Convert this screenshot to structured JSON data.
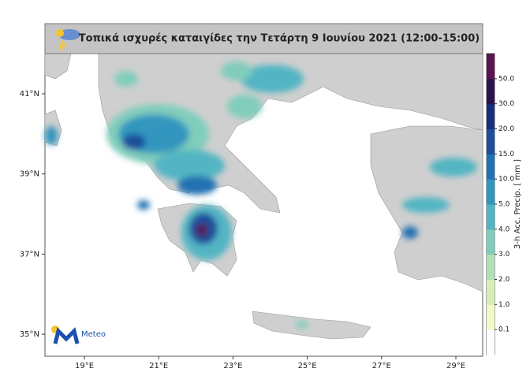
{
  "header": {
    "title": "Τοπικά ισχυρές καταιγίδες την Τετάρτη 9 Ιουνίου 2021 (12:00-15:00)"
  },
  "map": {
    "lat_labels": [
      "41°N",
      "39°N",
      "37°N",
      "35°N"
    ],
    "lon_labels": [
      "19°E",
      "21°E",
      "23°E",
      "25°E",
      "27°E",
      "29°E"
    ]
  },
  "colorbar": {
    "label": "3-h Acc. Precip. [ mm ]",
    "ticks": [
      "0.1",
      "1.0",
      "2.0",
      "3.0",
      "4.0",
      "5.0",
      "10.0",
      "15.0",
      "20.0",
      "30.0",
      "50.0"
    ],
    "colors": [
      "#ffffff",
      "#f4f9c8",
      "#d7efb4",
      "#b2e1b5",
      "#80cdbb",
      "#52b5c3",
      "#3196bf",
      "#2171b2",
      "#1d4e9b",
      "#192e79",
      "#2a124f",
      "#5a1450"
    ]
  },
  "logo": {
    "text": "Meteo"
  }
}
